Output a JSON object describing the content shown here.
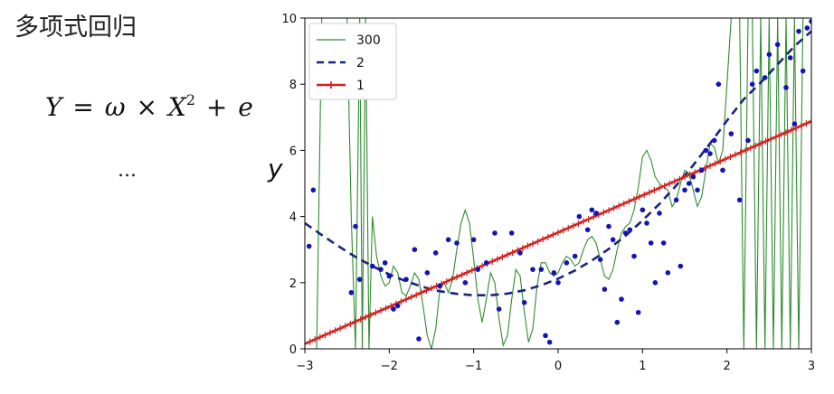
{
  "slide": {
    "title": "多项式回归",
    "formula": {
      "lhs": "Y",
      "eq": "=",
      "omega": "ω",
      "times": "×",
      "x": "X",
      "exp": "2",
      "plus": "+",
      "e": "e"
    },
    "ellipsis": "..."
  },
  "chart_data": {
    "type": "line",
    "xlim": [
      -3,
      3
    ],
    "ylim": [
      0,
      10
    ],
    "xticks": [
      -3,
      -2,
      -1,
      0,
      1,
      2,
      3
    ],
    "yticks": [
      0,
      2,
      4,
      6,
      8,
      10
    ],
    "xtick_labels": [
      "−3",
      "−2",
      "−1",
      "0",
      "1",
      "2",
      "3"
    ],
    "ytick_labels": [
      "0",
      "2",
      "4",
      "6",
      "8",
      "10"
    ],
    "ylabel": "y",
    "xlabel": "",
    "legend_position": "top-left",
    "series": [
      {
        "name": "300",
        "style": "thin-solid",
        "color": "#2e8b2e",
        "x": [
          -2.86,
          -2.8,
          -2.75,
          -2.7,
          -2.65,
          -2.6,
          -2.55,
          -2.5,
          -2.45,
          -2.4,
          -2.35,
          -2.32,
          -2.28,
          -2.24,
          -2.2,
          -2.15,
          -2.1,
          -2.05,
          -2.0,
          -1.95,
          -1.9,
          -1.85,
          -1.8,
          -1.75,
          -1.7,
          -1.65,
          -1.6,
          -1.55,
          -1.5,
          -1.45,
          -1.4,
          -1.35,
          -1.3,
          -1.25,
          -1.2,
          -1.15,
          -1.1,
          -1.05,
          -1.0,
          -0.95,
          -0.9,
          -0.85,
          -0.8,
          -0.75,
          -0.7,
          -0.65,
          -0.6,
          -0.55,
          -0.5,
          -0.45,
          -0.4,
          -0.35,
          -0.3,
          -0.25,
          -0.2,
          -0.15,
          -0.1,
          -0.05,
          0.0,
          0.05,
          0.1,
          0.15,
          0.2,
          0.25,
          0.3,
          0.35,
          0.4,
          0.45,
          0.5,
          0.55,
          0.6,
          0.65,
          0.7,
          0.75,
          0.8,
          0.85,
          0.9,
          0.95,
          1.0,
          1.05,
          1.1,
          1.15,
          1.2,
          1.25,
          1.3,
          1.35,
          1.4,
          1.45,
          1.5,
          1.55,
          1.6,
          1.65,
          1.7,
          1.75,
          1.8,
          1.85,
          1.9,
          1.95,
          2.0,
          2.05,
          2.1,
          2.15,
          2.2,
          2.25,
          2.3,
          2.35,
          2.4,
          2.45,
          2.5,
          2.55,
          2.6,
          2.65,
          2.7,
          2.75,
          2.8,
          2.85,
          2.9,
          2.95
        ],
        "y": [
          0,
          10,
          10,
          10,
          10,
          10,
          10,
          10,
          4,
          0,
          10,
          0,
          10,
          0,
          4.0,
          2.8,
          2.2,
          1.9,
          2.0,
          2.5,
          2.3,
          1.7,
          1.6,
          1.9,
          2.3,
          2.1,
          1.3,
          0.4,
          0.0,
          0.6,
          1.8,
          2.0,
          1.7,
          2.1,
          3.0,
          3.8,
          4.2,
          3.8,
          2.7,
          1.5,
          0.8,
          1.5,
          2.3,
          2.0,
          0.9,
          0.1,
          0.4,
          1.5,
          2.4,
          2.2,
          1.1,
          0.2,
          0.6,
          1.9,
          2.6,
          2.6,
          2.3,
          2.2,
          2.3,
          2.6,
          2.8,
          2.7,
          2.5,
          2.6,
          3.0,
          3.3,
          3.4,
          3.2,
          2.7,
          2.2,
          2.1,
          2.4,
          3.0,
          3.5,
          3.7,
          3.8,
          4.2,
          4.9,
          5.8,
          6.0,
          5.7,
          5.2,
          5.0,
          4.9,
          4.8,
          4.3,
          4.5,
          5.0,
          5.4,
          5.3,
          4.8,
          4.3,
          4.6,
          5.4,
          6.2,
          6.1,
          5.6,
          6.0,
          8.0,
          10,
          10,
          10,
          0,
          10,
          10,
          0,
          10,
          0,
          10,
          0,
          10,
          0,
          10,
          0,
          10,
          0,
          10,
          10
        ]
      },
      {
        "name": "2",
        "style": "dashed",
        "color": "#1a237e",
        "x": [
          -3.0,
          -2.8,
          -2.6,
          -2.4,
          -2.2,
          -2.0,
          -1.8,
          -1.6,
          -1.4,
          -1.2,
          -1.0,
          -0.8,
          -0.6,
          -0.4,
          -0.2,
          0.0,
          0.2,
          0.4,
          0.6,
          0.8,
          1.0,
          1.2,
          1.4,
          1.6,
          1.8,
          2.0,
          2.2,
          2.4,
          2.6,
          2.8,
          3.0
        ],
        "y": [
          3.8,
          3.44,
          3.1,
          2.78,
          2.5,
          2.25,
          2.04,
          1.87,
          1.74,
          1.66,
          1.62,
          1.62,
          1.67,
          1.77,
          1.92,
          2.12,
          2.37,
          2.67,
          3.02,
          3.42,
          3.88,
          4.38,
          4.94,
          5.55,
          6.21,
          6.9,
          7.55,
          8.05,
          8.6,
          9.15,
          9.6
        ]
      },
      {
        "name": "1",
        "style": "solid-plus-markers",
        "color": "#d42020",
        "x": [
          -3.0,
          -2.5,
          -2.0,
          -1.5,
          -1.0,
          -0.5,
          0.0,
          0.5,
          1.0,
          1.5,
          2.0,
          2.5,
          3.0
        ],
        "y": [
          0.15,
          0.71,
          1.27,
          1.83,
          2.4,
          2.96,
          3.52,
          4.08,
          4.64,
          5.2,
          5.76,
          6.32,
          6.88
        ]
      }
    ],
    "scatter": {
      "color": "#1414b4",
      "points": [
        [
          -2.95,
          3.1
        ],
        [
          -2.9,
          4.8
        ],
        [
          -2.45,
          1.7
        ],
        [
          -2.4,
          3.7
        ],
        [
          -2.35,
          2.1
        ],
        [
          -2.2,
          2.5
        ],
        [
          -2.1,
          2.4
        ],
        [
          -2.05,
          2.6
        ],
        [
          -2.0,
          2.2
        ],
        [
          -1.95,
          1.2
        ],
        [
          -1.9,
          1.3
        ],
        [
          -1.8,
          2.1
        ],
        [
          -1.7,
          3.0
        ],
        [
          -1.65,
          0.3
        ],
        [
          -1.55,
          2.3
        ],
        [
          -1.45,
          2.9
        ],
        [
          -1.4,
          1.9
        ],
        [
          -1.3,
          3.3
        ],
        [
          -1.2,
          3.2
        ],
        [
          -1.1,
          2.0
        ],
        [
          -1.0,
          3.3
        ],
        [
          -0.95,
          2.4
        ],
        [
          -0.85,
          2.6
        ],
        [
          -0.75,
          3.5
        ],
        [
          -0.7,
          1.2
        ],
        [
          -0.55,
          3.5
        ],
        [
          -0.45,
          2.9
        ],
        [
          -0.4,
          1.4
        ],
        [
          -0.3,
          2.4
        ],
        [
          -0.2,
          2.4
        ],
        [
          -0.15,
          0.4
        ],
        [
          -0.1,
          0.2
        ],
        [
          -0.05,
          2.3
        ],
        [
          0.0,
          2.0
        ],
        [
          0.1,
          2.6
        ],
        [
          0.2,
          2.8
        ],
        [
          0.25,
          4.0
        ],
        [
          0.35,
          3.6
        ],
        [
          0.4,
          4.2
        ],
        [
          0.45,
          4.1
        ],
        [
          0.5,
          2.7
        ],
        [
          0.55,
          1.8
        ],
        [
          0.6,
          3.7
        ],
        [
          0.65,
          3.3
        ],
        [
          0.7,
          0.8
        ],
        [
          0.75,
          1.5
        ],
        [
          0.8,
          3.5
        ],
        [
          0.85,
          3.6
        ],
        [
          0.9,
          2.8
        ],
        [
          0.95,
          1.1
        ],
        [
          1.0,
          4.2
        ],
        [
          1.05,
          3.8
        ],
        [
          1.1,
          3.2
        ],
        [
          1.15,
          2.0
        ],
        [
          1.2,
          4.1
        ],
        [
          1.25,
          3.2
        ],
        [
          1.3,
          2.3
        ],
        [
          1.4,
          4.5
        ],
        [
          1.45,
          2.5
        ],
        [
          1.5,
          4.8
        ],
        [
          1.55,
          5.0
        ],
        [
          1.6,
          5.2
        ],
        [
          1.65,
          4.8
        ],
        [
          1.7,
          5.4
        ],
        [
          1.75,
          6.0
        ],
        [
          1.8,
          5.9
        ],
        [
          1.85,
          6.3
        ],
        [
          1.9,
          8.0
        ],
        [
          1.95,
          5.4
        ],
        [
          2.05,
          6.5
        ],
        [
          2.15,
          4.5
        ],
        [
          2.25,
          6.3
        ],
        [
          2.3,
          8.0
        ],
        [
          2.35,
          8.4
        ],
        [
          2.45,
          8.2
        ],
        [
          2.5,
          8.9
        ],
        [
          2.6,
          9.2
        ],
        [
          2.7,
          7.9
        ],
        [
          2.75,
          8.8
        ],
        [
          2.8,
          6.8
        ],
        [
          2.85,
          9.6
        ],
        [
          2.9,
          8.4
        ],
        [
          2.95,
          9.7
        ],
        [
          3.0,
          9.9
        ]
      ]
    }
  }
}
